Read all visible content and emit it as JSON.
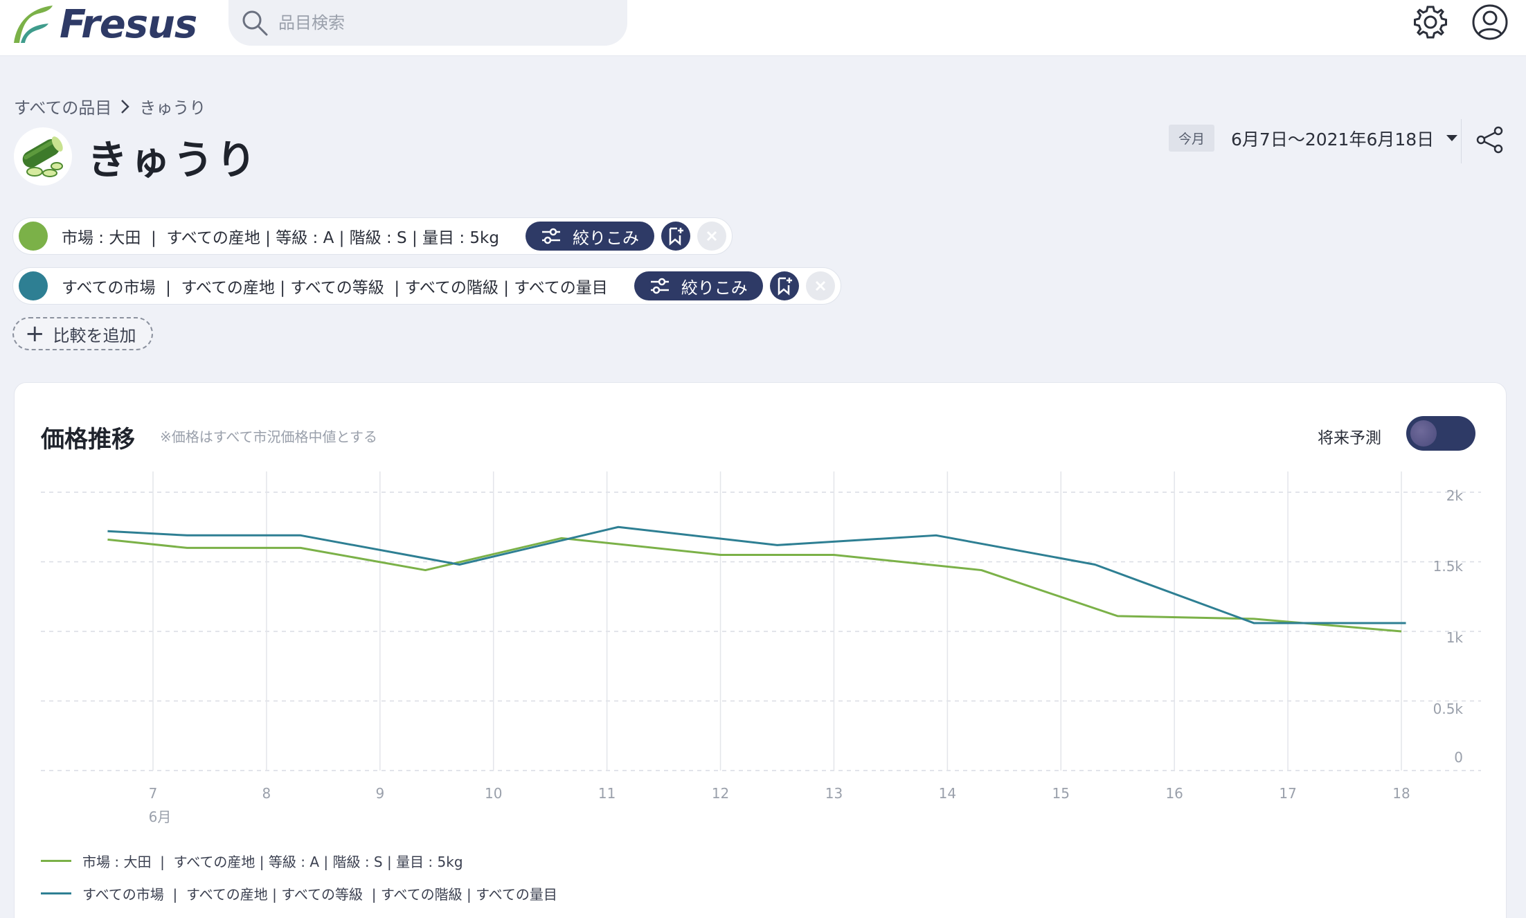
{
  "header": {
    "logo_text": "Fresus",
    "search_placeholder": "品目検索",
    "icons": [
      "search-icon",
      "gear-icon",
      "user-icon"
    ]
  },
  "breadcrumb": {
    "root": "すべての品目",
    "current": "きゅうり"
  },
  "page": {
    "title": "きゅうり",
    "month_chip": "今月",
    "date_range": "6月7日〜2021年6月18日"
  },
  "filters": [
    {
      "color": "#7bb148",
      "text": "市場 : 大田  |  すべての産地 | 等級 : A | 階級 : S | 量目 : 5kg",
      "refine_label": "絞りこみ"
    },
    {
      "color": "#2e7f93",
      "text": "すべての市場  |  すべての産地 | すべての等級  | すべての階級 | すべての量目",
      "refine_label": "絞りこみ"
    }
  ],
  "add_compare_label": "比較を追加",
  "card": {
    "title": "価格推移",
    "note": "※価格はすべて市況価格中値とする",
    "forecast_label": "将来予測",
    "forecast_on": true
  },
  "colors": {
    "brand_navy": "#2e3a66",
    "series_green": "#7bb148",
    "series_teal": "#2e7f93"
  },
  "chart_data": {
    "type": "line",
    "x": [
      6.6,
      7,
      8,
      8.3,
      9.4,
      9.7,
      10.6,
      11,
      12,
      13,
      13.9,
      14.3,
      15.5,
      16.5,
      17.3,
      18
    ],
    "x_tick_labels": [
      "7",
      "8",
      "9",
      "10",
      "11",
      "12",
      "13",
      "14",
      "15",
      "16",
      "17",
      "18"
    ],
    "x_month_label": "6月",
    "y_tick_labels": [
      "2k",
      "1.5k",
      "1k",
      "0.5k",
      "0"
    ],
    "ylim": [
      0,
      2100
    ],
    "grid": true,
    "legend_position": "bottom-left",
    "series": [
      {
        "name": "市場 : 大田  |  すべての産地 | 等級 : A | 階級 : S | 量目 : 5kg",
        "color": "#7bb148",
        "points": [
          [
            6.6,
            1660
          ],
          [
            7.3,
            1600
          ],
          [
            8.3,
            1600
          ],
          [
            9.4,
            1440
          ],
          [
            10.6,
            1670
          ],
          [
            12,
            1550
          ],
          [
            13,
            1550
          ],
          [
            14.3,
            1440
          ],
          [
            15.5,
            1110
          ],
          [
            16.7,
            1090
          ],
          [
            18,
            1000
          ]
        ]
      },
      {
        "name": "すべての市場  |  すべての産地 | すべての等級  | すべての階級 | すべての量目",
        "color": "#2e7f93",
        "points": [
          [
            6.6,
            1720
          ],
          [
            7.3,
            1690
          ],
          [
            8.3,
            1690
          ],
          [
            9.7,
            1480
          ],
          [
            11.1,
            1750
          ],
          [
            12.5,
            1620
          ],
          [
            13.9,
            1690
          ],
          [
            15.3,
            1480
          ],
          [
            16.7,
            1060
          ],
          [
            18.04,
            1060
          ]
        ]
      }
    ]
  }
}
